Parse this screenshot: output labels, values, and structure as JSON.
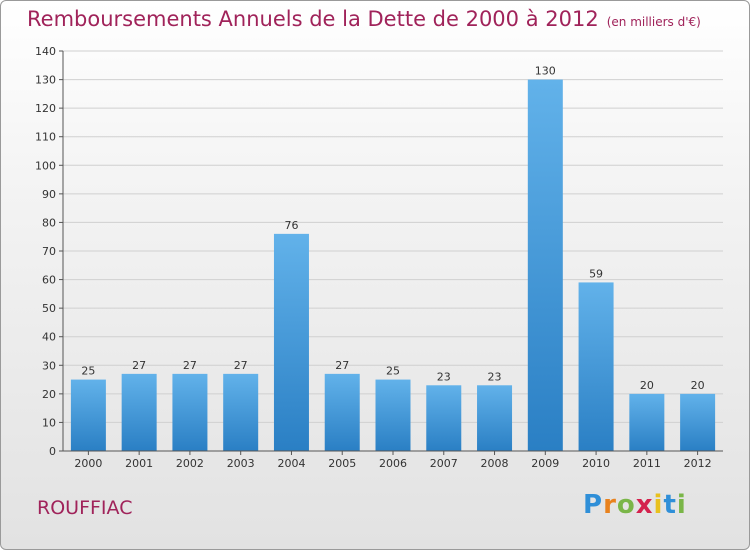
{
  "title": "Remboursements Annuels de la Dette de 2000 à 2012",
  "unit_label": "(en milliers d'€)",
  "commune": "ROUFFIAC",
  "logo": {
    "letters": [
      "P",
      "r",
      "o",
      "x",
      "i",
      "t",
      "i"
    ],
    "colors": [
      "#2f8fd8",
      "#e8821e",
      "#7ab648",
      "#d4224d",
      "#e8c11e",
      "#2f8fd8",
      "#7ab648"
    ]
  },
  "colors": {
    "title": "#a0235a",
    "bar_top": "#62b2ea",
    "bar_bottom": "#2a7fc4",
    "grid": "#d0d0d0"
  },
  "chart_data": {
    "type": "bar",
    "title": "Remboursements Annuels de la Dette de 2000 à 2012",
    "xlabel": "",
    "ylabel": "",
    "categories": [
      "2000",
      "2001",
      "2002",
      "2003",
      "2004",
      "2005",
      "2006",
      "2007",
      "2008",
      "2009",
      "2010",
      "2011",
      "2012"
    ],
    "values": [
      25,
      27,
      27,
      27,
      76,
      27,
      25,
      23,
      23,
      130,
      59,
      20,
      20
    ],
    "ylim": [
      0,
      140
    ],
    "yticks": [
      0,
      10,
      20,
      30,
      40,
      50,
      60,
      70,
      80,
      90,
      100,
      110,
      120,
      130,
      140
    ],
    "grid": true,
    "data_labels": true
  }
}
